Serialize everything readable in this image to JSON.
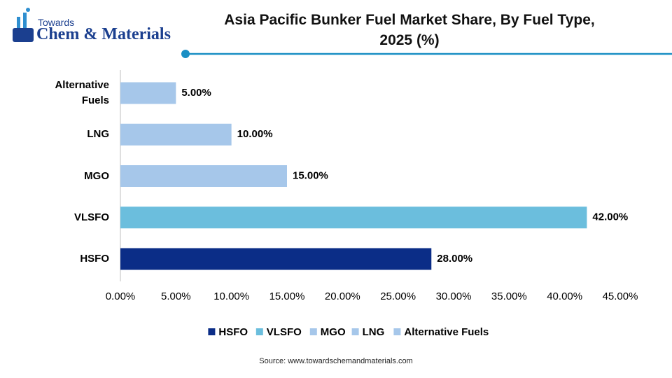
{
  "logo": {
    "top": "Towards",
    "main": "Chem & Materials"
  },
  "source": "Source: www.towardschemandmaterials.com",
  "chart_data": {
    "type": "hbar",
    "title": "Asia Pacific Bunker Fuel Market Share, By Fuel Type, 2025 (%)",
    "categories": [
      "HSFO",
      "VLSFO",
      "MGO",
      "LNG",
      "Alternative Fuels"
    ],
    "values": [
      28,
      42,
      15,
      10,
      5
    ],
    "value_labels": [
      "28.00%",
      "42.00%",
      "15.00%",
      "10.00%",
      "5.00%"
    ],
    "colors": [
      "#0b2d87",
      "#6bbedd",
      "#a6c7ea",
      "#a6c7ea",
      "#a6c7ea"
    ],
    "xlim": [
      0,
      45
    ],
    "xticks": [
      {
        "value": 0,
        "label": "0.00%"
      },
      {
        "value": 5,
        "label": "5.00%"
      },
      {
        "value": 10,
        "label": "10.00%"
      },
      {
        "value": 15,
        "label": "15.00%"
      },
      {
        "value": 20,
        "label": "20.00%"
      },
      {
        "value": 25,
        "label": "25.00%"
      },
      {
        "value": 30,
        "label": "30.00%"
      },
      {
        "value": 35,
        "label": "35.00%"
      },
      {
        "value": 40,
        "label": "40.00%"
      },
      {
        "value": 45,
        "label": "45.00%"
      }
    ],
    "legend": "bottom"
  }
}
